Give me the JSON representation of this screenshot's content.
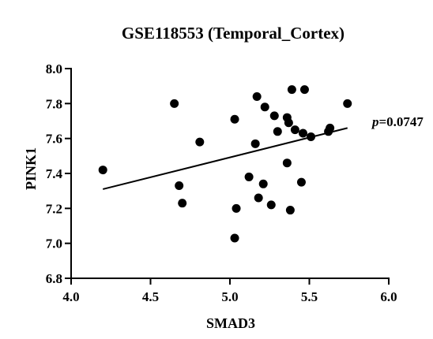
{
  "chart_data": {
    "type": "scatter",
    "title": "GSE118553 (Temporal_Cortex)",
    "xlabel": "SMAD3",
    "ylabel": "PINK1",
    "xlim": [
      4.0,
      6.0
    ],
    "ylim": [
      6.8,
      8.0
    ],
    "xticks": [
      "4.0",
      "4.5",
      "5.0",
      "5.5",
      "6.0"
    ],
    "yticks": [
      "6.8",
      "7.0",
      "7.2",
      "7.4",
      "7.6",
      "7.8",
      "8.0"
    ],
    "annotation": {
      "italic": "p",
      "text": "=0.0747"
    },
    "grid": false,
    "points": [
      {
        "x": 4.2,
        "y": 7.42
      },
      {
        "x": 4.65,
        "y": 7.8
      },
      {
        "x": 4.68,
        "y": 7.33
      },
      {
        "x": 4.7,
        "y": 7.23
      },
      {
        "x": 4.81,
        "y": 7.58
      },
      {
        "x": 5.03,
        "y": 7.71
      },
      {
        "x": 5.03,
        "y": 7.03
      },
      {
        "x": 5.04,
        "y": 7.2
      },
      {
        "x": 5.12,
        "y": 7.38
      },
      {
        "x": 5.16,
        "y": 7.57
      },
      {
        "x": 5.17,
        "y": 7.84
      },
      {
        "x": 5.18,
        "y": 7.26
      },
      {
        "x": 5.21,
        "y": 7.34
      },
      {
        "x": 5.22,
        "y": 7.78
      },
      {
        "x": 5.26,
        "y": 7.22
      },
      {
        "x": 5.28,
        "y": 7.73
      },
      {
        "x": 5.3,
        "y": 7.64
      },
      {
        "x": 5.36,
        "y": 7.46
      },
      {
        "x": 5.36,
        "y": 7.72
      },
      {
        "x": 5.37,
        "y": 7.69
      },
      {
        "x": 5.38,
        "y": 7.19
      },
      {
        "x": 5.39,
        "y": 7.88
      },
      {
        "x": 5.41,
        "y": 7.65
      },
      {
        "x": 5.45,
        "y": 7.35
      },
      {
        "x": 5.46,
        "y": 7.63
      },
      {
        "x": 5.47,
        "y": 7.88
      },
      {
        "x": 5.51,
        "y": 7.61
      },
      {
        "x": 5.62,
        "y": 7.64
      },
      {
        "x": 5.63,
        "y": 7.66
      },
      {
        "x": 5.74,
        "y": 7.8
      }
    ],
    "regression_line": {
      "x": [
        4.2,
        5.74
      ],
      "y": [
        7.31,
        7.66
      ]
    }
  }
}
